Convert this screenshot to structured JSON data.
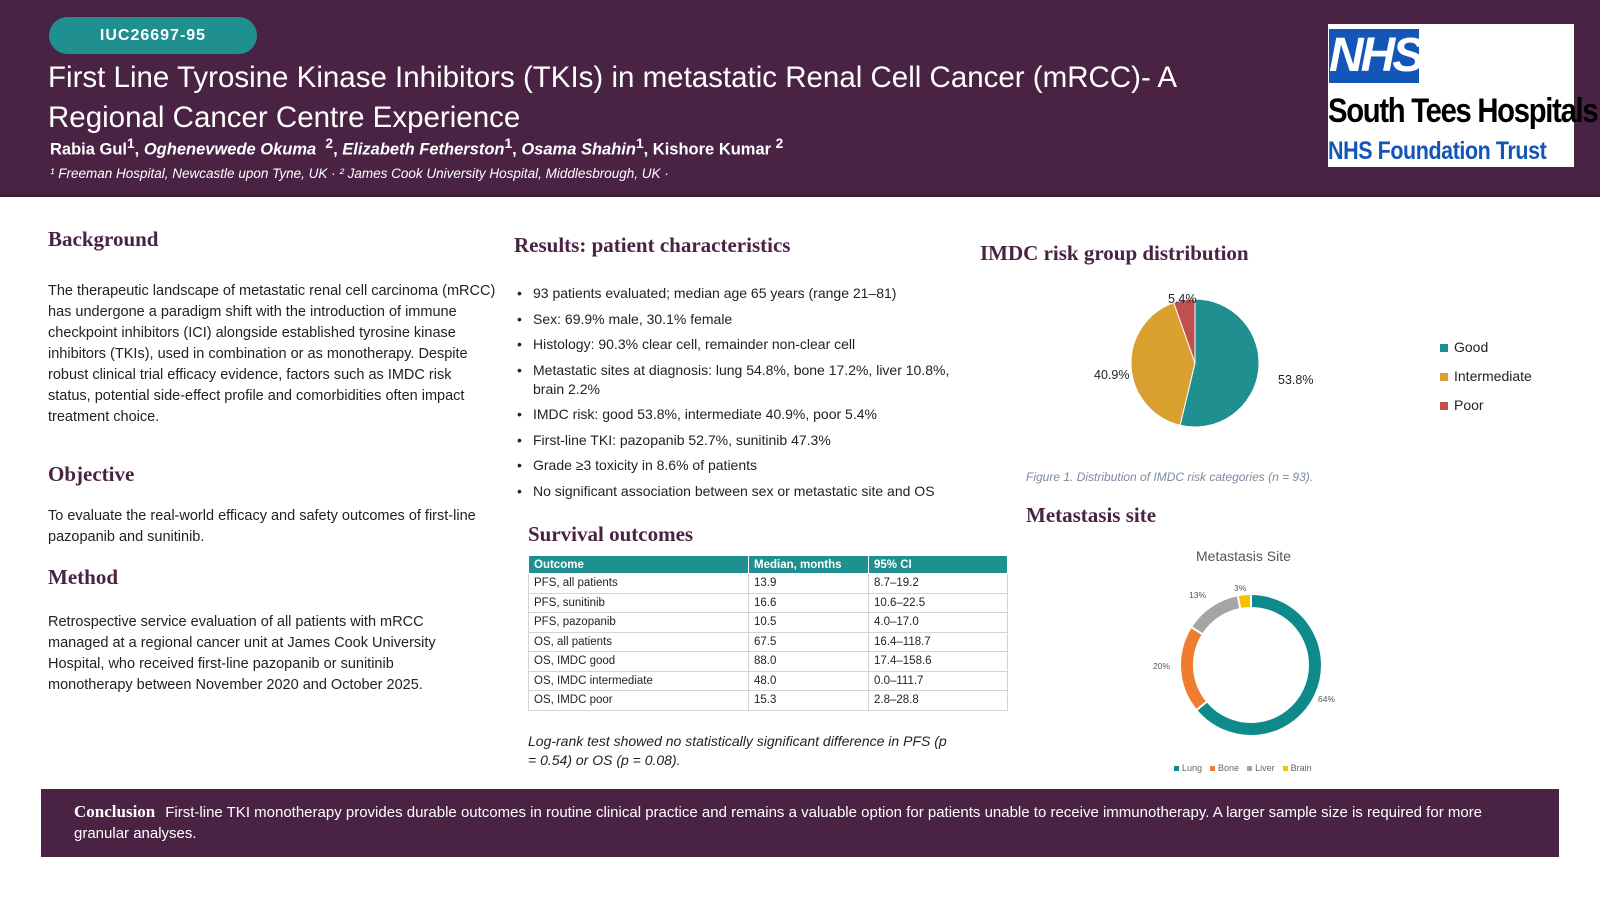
{
  "header": {
    "code": "IUC26697-95",
    "title": "First Line Tyrosine Kinase Inhibitors (TKIs) in metastatic Renal Cell Cancer (mRCC)- A Regional Cancer Centre Experience",
    "authors": {
      "a1": "Rabia Gul",
      "a1_sup": "1",
      "a2": "Oghenevwede Okuma",
      "a2_sup": "2",
      "a3": "Elizabeth Fetherston",
      "a3_sup": "1",
      "a4": "Osama Shahin",
      "a4_sup": "1",
      "a5": "Kishore Kumar",
      "a5_sup": "2"
    },
    "affiliations": "¹ Freeman Hospital, Newcastle upon Tyne, UK  ·   ² James Cook University Hospital, Middlesbrough, UK ·",
    "logo": {
      "badge": "NHS",
      "line1": "South Tees Hospitals",
      "line2": "NHS Foundation Trust"
    }
  },
  "background": {
    "heading": "Background",
    "text": "The therapeutic landscape of metastatic renal cell carcinoma (mRCC) has undergone a paradigm shift with the introduction of immune checkpoint inhibitors (ICI) alongside established tyrosine kinase inhibitors (TKIs), used in combination or as monotherapy. Despite robust clinical trial efficacy evidence, factors such as IMDC risk status, potential side-effect profile and comorbidities often impact treatment choice."
  },
  "objective": {
    "heading": "Objective",
    "text": "To evaluate the real-world efficacy and safety outcomes of first-line pazopanib and sunitinib."
  },
  "method": {
    "heading": "Method",
    "text": "Retrospective service evaluation of all patients with mRCC managed at a regional cancer unit at James Cook University Hospital, who received first-line pazopanib or sunitinib monotherapy between November 2020 and October 2025."
  },
  "results": {
    "heading": "Results: patient characteristics",
    "items": [
      "93 patients evaluated; median age 65 years (range 21–81)",
      "Sex: 69.9% male, 30.1% female",
      "Histology: 90.3% clear cell, remainder non-clear cell",
      "Metastatic sites at diagnosis: lung 54.8%, bone 17.2%, liver 10.8%, brain 2.2%",
      "IMDC risk: good 53.8%, intermediate 40.9%, poor 5.4%",
      "First-line TKI: pazopanib 52.7%, sunitinib 47.3%",
      "Grade ≥3 toxicity in 8.6% of patients",
      "No significant association between sex or metastatic site and OS"
    ]
  },
  "survival": {
    "heading": "Survival outcomes",
    "columns": [
      "Outcome",
      "Median, months",
      "95% CI"
    ],
    "rows": [
      [
        "PFS, all patients",
        "13.9",
        "8.7–19.2"
      ],
      [
        "PFS, sunitinib",
        "16.6",
        "10.6–22.5"
      ],
      [
        "PFS, pazopanib",
        "10.5",
        "4.0–17.0"
      ],
      [
        "OS, all patients",
        "67.5",
        "16.4–118.7"
      ],
      [
        "OS, IMDC good",
        "88.0",
        "17.4–158.6"
      ],
      [
        "OS, IMDC intermediate",
        "48.0",
        "0.0–111.7"
      ],
      [
        "OS, IMDC poor",
        "15.3",
        "2.8–28.8"
      ]
    ],
    "note": "Log-rank test showed no statistically significant difference in PFS (p = 0.54) or OS (p = 0.08)."
  },
  "imdc_section": {
    "heading": "IMDC risk group distribution",
    "caption": "Figure 1. Distribution of IMDC risk categories (n = 93)."
  },
  "metastasis_section": {
    "heading": "Metastasis site"
  },
  "conclusion": {
    "heading": "Conclusion",
    "text": "First-line TKI monotherapy provides durable outcomes in routine clinical practice and remains a valuable option for patients unable to receive immunotherapy. A larger sample size is required for more granular analyses."
  },
  "colors": {
    "purple": "#4a2344",
    "teal": "#1f8f8f",
    "intermediate": "#d9a030",
    "poor": "#c0504d",
    "lung": "#0f8a8a",
    "bone": "#ee7d30",
    "liver": "#a5a5a5",
    "brain": "#f5c200"
  },
  "chart_data": [
    {
      "type": "pie",
      "title": "",
      "categories": [
        "Good",
        "Intermediate",
        "Poor"
      ],
      "values": [
        53.8,
        40.9,
        5.4
      ],
      "labels": [
        "53.8%",
        "40.9%",
        "5.4%"
      ],
      "colors": [
        "#1f8f8f",
        "#d9a030",
        "#c0504d"
      ],
      "legend": "right"
    },
    {
      "type": "pie",
      "subtype": "donut",
      "title": "Metastasis Site",
      "categories": [
        "Lung",
        "Bone",
        "Liver",
        "Brain"
      ],
      "values": [
        64,
        20,
        13,
        3
      ],
      "labels": [
        "64%",
        "20%",
        "13%",
        "3%"
      ],
      "colors": [
        "#0f8a8a",
        "#ee7d30",
        "#a5a5a5",
        "#f5c200"
      ],
      "legend": "bottom"
    }
  ]
}
